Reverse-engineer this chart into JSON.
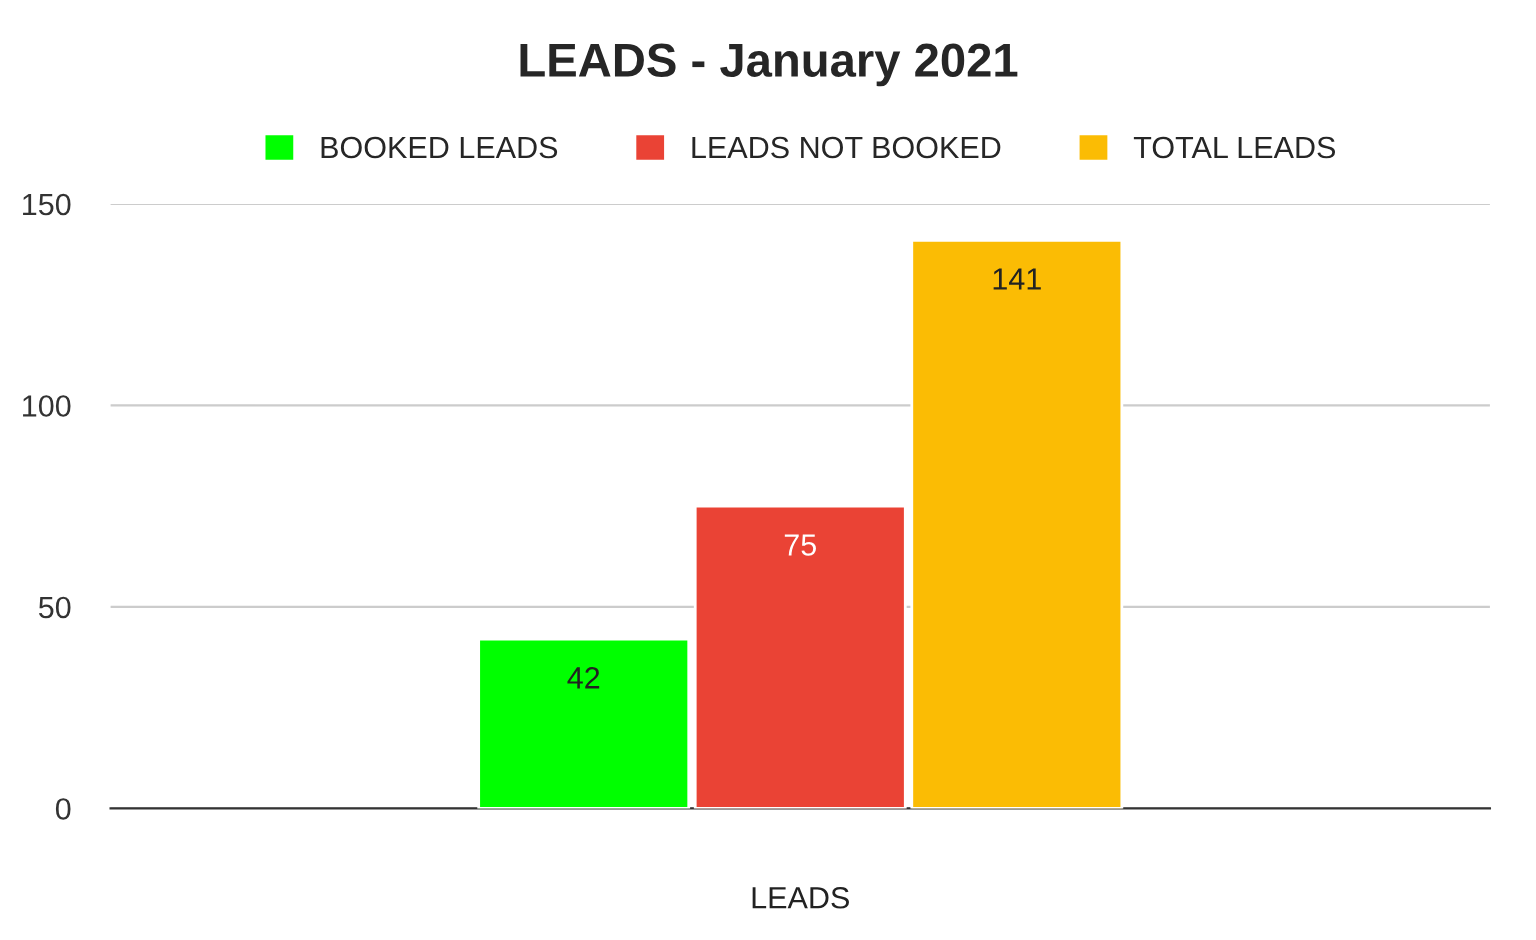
{
  "chart_data": {
    "type": "bar",
    "title": "LEADS - January 2021",
    "categories": [
      "LEADS"
    ],
    "series": [
      {
        "name": "BOOKED LEADS",
        "color": "#00ff00",
        "values": [
          42
        ]
      },
      {
        "name": "LEADS NOT BOOKED",
        "color": "#ea4335",
        "values": [
          75
        ]
      },
      {
        "name": "TOTAL LEADS",
        "color": "#fbbc04",
        "values": [
          141
        ]
      }
    ],
    "ylim": [
      0,
      150
    ],
    "yticks": [
      0,
      50,
      100,
      150
    ],
    "grid": "y",
    "legend": "top",
    "data_labels": true
  }
}
